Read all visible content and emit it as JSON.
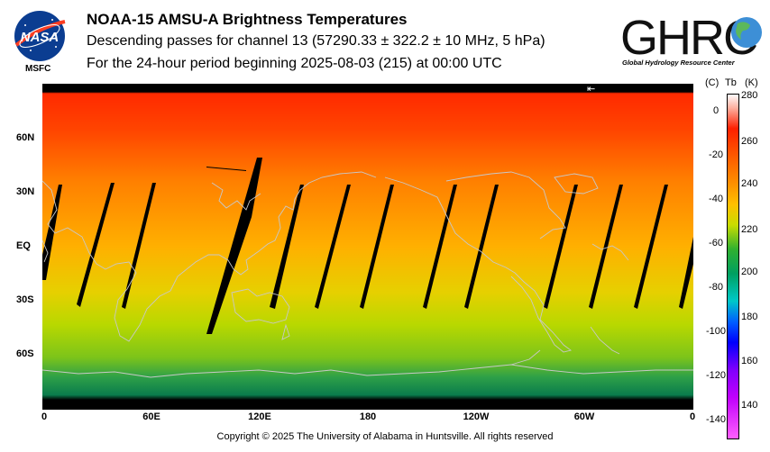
{
  "header": {
    "title": "NOAA-15 AMSU-A Brightness Temperatures",
    "subtitle_line1": "Descending passes for channel 13 (57290.33 ± 322.2 ± 10 MHz, 5 hPa)",
    "subtitle_line2": "For the 24-hour period beginning 2025-08-03 (215) at 00:00 UTC"
  },
  "logos": {
    "nasa": {
      "text": "NASA",
      "caption": "MSFC"
    },
    "ghrc": {
      "text": "GHRC",
      "caption": "Global Hydrology Resource Center"
    }
  },
  "map": {
    "lat_labels": [
      "60N",
      "30N",
      "EQ",
      "30S",
      "60S"
    ],
    "lon_labels": [
      "0",
      "60E",
      "120E",
      "180",
      "120W",
      "60W",
      "0"
    ],
    "arrow_marker": "⇤"
  },
  "colorbar": {
    "unit_c": "(C)",
    "unit_tb": "Tb",
    "unit_k": "(K)",
    "celsius_ticks": [
      "0",
      "-20",
      "-40",
      "-60",
      "-80",
      "-100",
      "-120",
      "-140"
    ],
    "kelvin_ticks": [
      "280",
      "260",
      "240",
      "220",
      "200",
      "180",
      "160",
      "140"
    ],
    "colors": [
      "#ffffff",
      "#ff2000",
      "#ff9000",
      "#c8dc00",
      "#00a060",
      "#00c8c8",
      "#0000ff",
      "#c000ff",
      "#ff60ff"
    ]
  },
  "footer": {
    "copyright": "Copyright © 2025 The University of Alabama in Huntsville.  All rights reserved"
  }
}
